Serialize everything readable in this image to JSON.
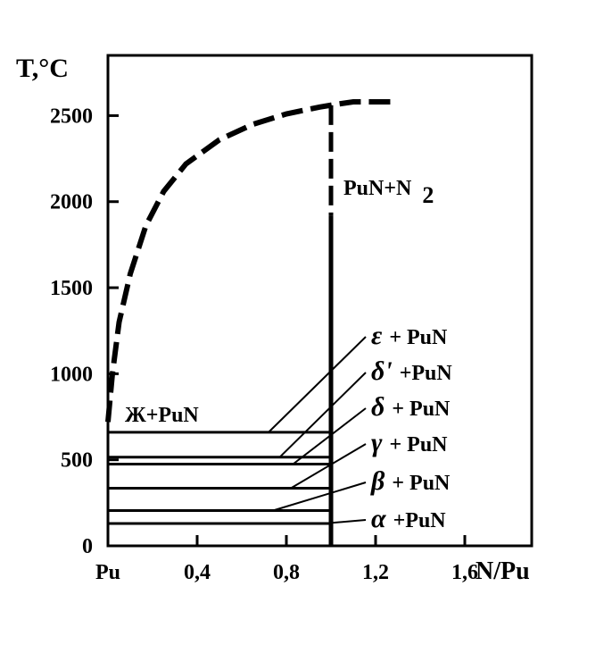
{
  "chart_data": {
    "type": "line",
    "ylabel": "T,°C",
    "xlabel": "N/Pu",
    "xlim": [
      0,
      1.9
    ],
    "ylim": [
      0,
      2850
    ],
    "x_ticks": [
      {
        "value": 0,
        "label": "Pu"
      },
      {
        "value": 0.4,
        "label": "0,4"
      },
      {
        "value": 0.8,
        "label": "0,8"
      },
      {
        "value": 1.2,
        "label": "1,2"
      },
      {
        "value": 1.6,
        "label": "1,6"
      }
    ],
    "y_ticks": [
      {
        "value": 0,
        "label": "0"
      },
      {
        "value": 500,
        "label": "500"
      },
      {
        "value": 1000,
        "label": "1000"
      },
      {
        "value": 1500,
        "label": "1500"
      },
      {
        "value": 2000,
        "label": "2000"
      },
      {
        "value": 2500,
        "label": "2500"
      }
    ],
    "liquidus_dashed": [
      [
        0.0,
        720
      ],
      [
        0.02,
        1000
      ],
      [
        0.05,
        1300
      ],
      [
        0.1,
        1580
      ],
      [
        0.17,
        1860
      ],
      [
        0.25,
        2060
      ],
      [
        0.35,
        2220
      ],
      [
        0.5,
        2360
      ],
      [
        0.65,
        2450
      ],
      [
        0.8,
        2510
      ],
      [
        0.95,
        2550
      ],
      [
        1.02,
        2565
      ],
      [
        1.1,
        2580
      ],
      [
        1.3,
        2580
      ]
    ],
    "pun_line": {
      "x": 1.0,
      "y_bottom": 0,
      "y_dash_top": 2560,
      "y_solid_top": 1920
    },
    "isotherms": [
      {
        "y": 660,
        "label": "Ж+PuN"
      },
      {
        "y": 515
      },
      {
        "y": 475
      },
      {
        "y": 335
      },
      {
        "y": 205
      },
      {
        "y": 130
      }
    ],
    "regions": {
      "liquid_pun": "Ж+PuN",
      "pun_n2": "PuN+N",
      "pun_n2_sub": "2"
    },
    "phase_labels": [
      {
        "symbol": "ε",
        "text": "+ PuN",
        "point_x": 0.72,
        "point_y": 660
      },
      {
        "symbol": "δ'",
        "text": "+PuN",
        "point_x": 0.77,
        "point_y": 515
      },
      {
        "symbol": "δ",
        "text": "+ PuN",
        "point_x": 0.83,
        "point_y": 475
      },
      {
        "symbol": "γ",
        "text": "+ PuN",
        "point_x": 0.82,
        "point_y": 335
      },
      {
        "symbol": "β",
        "text": "+ PuN",
        "point_x": 0.74,
        "point_y": 205
      },
      {
        "symbol": "α",
        "text": "+PuN",
        "point_x": 0.97,
        "point_y": 130
      }
    ]
  }
}
